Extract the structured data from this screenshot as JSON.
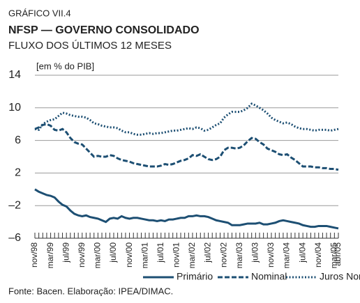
{
  "chart_data": {
    "type": "line",
    "kicker": "GRÁFICO VII.4",
    "title": "NFSP — GOVERNO CONSOLIDADO",
    "subtitle": "FLUXO DOS ÚLTIMOS 12 MESES",
    "y_label": "[em % do PIB]",
    "source": "Fonte: Bacen. Elaboração: IPEA/DIMAC.",
    "categories": [
      "nov/98",
      null,
      null,
      null,
      "mar/99",
      null,
      null,
      null,
      "jul/99",
      null,
      null,
      null,
      "nov/99",
      null,
      null,
      null,
      "mar/00",
      null,
      null,
      null,
      "jul/00",
      null,
      null,
      null,
      "nov/00",
      null,
      null,
      null,
      "mar/01",
      null,
      null,
      null,
      "jul/01",
      null,
      null,
      null,
      "nov/01",
      null,
      null,
      null,
      "mar/02",
      null,
      null,
      null,
      "jul/02",
      null,
      null,
      null,
      "nov/02",
      null,
      null,
      null,
      "mar/03",
      null,
      null,
      null,
      "jul/03",
      null,
      null,
      null,
      "nov/03",
      null,
      null,
      null,
      "mar/04",
      null,
      null,
      null,
      "jul/04",
      null,
      null,
      null,
      "nov/04",
      null,
      null,
      null,
      "mar/05",
      "abr/05"
    ],
    "series": [
      {
        "name": "Primário",
        "color": "#1d4f73",
        "style": "solid",
        "values": [
          0,
          -0.3,
          -0.5,
          -0.7,
          -0.8,
          -1.0,
          -1.5,
          -1.9,
          -2.1,
          -2.6,
          -3.0,
          -3.2,
          -3.3,
          -3.2,
          -3.4,
          -3.5,
          -3.6,
          -3.8,
          -4.0,
          -3.6,
          -3.5,
          -3.6,
          -3.3,
          -3.5,
          -3.6,
          -3.5,
          -3.5,
          -3.6,
          -3.7,
          -3.8,
          -3.8,
          -3.9,
          -3.8,
          -3.9,
          -3.7,
          -3.7,
          -3.6,
          -3.5,
          -3.5,
          -3.3,
          -3.3,
          -3.2,
          -3.3,
          -3.3,
          -3.4,
          -3.6,
          -3.8,
          -3.9,
          -4.0,
          -4.1,
          -4.4,
          -4.4,
          -4.4,
          -4.3,
          -4.2,
          -4.2,
          -4.2,
          -4.1,
          -4.3,
          -4.3,
          -4.2,
          -4.1,
          -3.9,
          -3.8,
          -3.9,
          -4.0,
          -4.1,
          -4.2,
          -4.4,
          -4.5,
          -4.6,
          -4.6,
          -4.5,
          -4.5,
          -4.5,
          -4.6,
          -4.7,
          -4.8
        ]
      },
      {
        "name": "Nominal",
        "color": "#1d4f73",
        "style": "dashed",
        "values": [
          7.4,
          7.6,
          7.9,
          8.0,
          7.8,
          7.3,
          7.2,
          7.4,
          7.0,
          6.3,
          5.8,
          5.6,
          5.5,
          5.0,
          4.5,
          4.0,
          4.1,
          4.0,
          4.0,
          4.2,
          4.1,
          3.8,
          3.6,
          3.5,
          3.4,
          3.2,
          3.1,
          3.0,
          2.9,
          2.8,
          2.8,
          2.8,
          2.9,
          3.1,
          3.0,
          3.1,
          3.3,
          3.5,
          3.6,
          3.8,
          4.2,
          4.1,
          4.3,
          4.0,
          3.7,
          3.6,
          3.7,
          4.0,
          4.8,
          5.1,
          5.1,
          5.0,
          5.1,
          5.4,
          5.9,
          6.3,
          6.2,
          5.8,
          5.5,
          5.0,
          4.8,
          4.6,
          4.3,
          4.2,
          4.3,
          3.9,
          3.6,
          3.2,
          2.8,
          2.8,
          2.8,
          2.7,
          2.7,
          2.6,
          2.6,
          2.5,
          2.5,
          2.4
        ]
      },
      {
        "name": "Juros Nominais",
        "color": "#1d4f73",
        "style": "dotted",
        "values": [
          7.4,
          7.3,
          8.0,
          8.3,
          8.5,
          8.6,
          9.0,
          9.4,
          9.3,
          9.1,
          9.0,
          8.9,
          8.9,
          8.8,
          8.5,
          8.1,
          8.0,
          7.8,
          7.7,
          7.6,
          7.6,
          7.5,
          7.2,
          7.0,
          7.0,
          6.8,
          6.7,
          6.7,
          6.8,
          6.9,
          6.8,
          6.9,
          6.9,
          7.0,
          7.1,
          7.2,
          7.2,
          7.3,
          7.4,
          7.5,
          7.4,
          7.6,
          7.5,
          7.2,
          7.3,
          7.6,
          7.9,
          8.1,
          8.8,
          9.2,
          9.5,
          9.5,
          9.5,
          9.7,
          10.0,
          10.5,
          10.3,
          10.0,
          9.7,
          9.3,
          8.8,
          8.5,
          8.3,
          8.1,
          8.2,
          8.0,
          7.7,
          7.5,
          7.4,
          7.4,
          7.3,
          7.2,
          7.3,
          7.3,
          7.3,
          7.2,
          7.3,
          7.4
        ]
      }
    ],
    "ylim": [
      -6,
      14
    ],
    "yticks": [
      {
        "value": -6,
        "label": "–6"
      },
      {
        "value": -2,
        "label": "–2"
      },
      2,
      6,
      10,
      14
    ],
    "grid": true,
    "legend": "bottom"
  }
}
